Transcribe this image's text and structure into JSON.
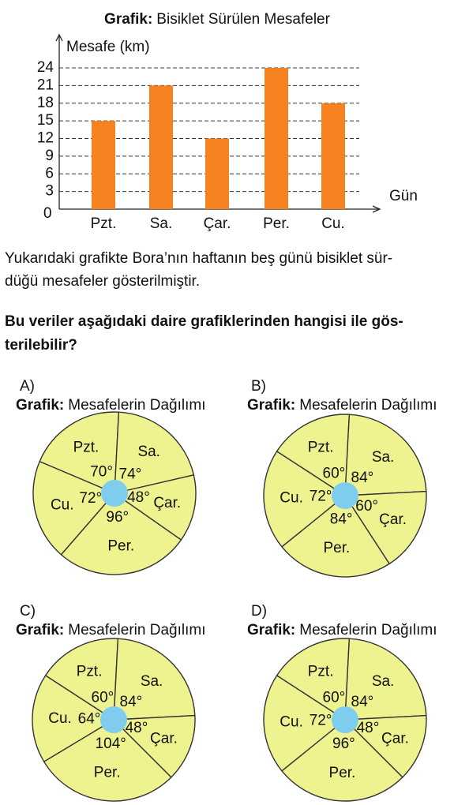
{
  "chart_data": [
    {
      "type": "bar",
      "title_bold": "Grafik:",
      "title": "Bisiklet Sürülen Mesafeler",
      "y_label": "Mesafe (km)",
      "x_label": "Gün",
      "categories": [
        "Pzt.",
        "Sa.",
        "Çar.",
        "Per.",
        "Cu."
      ],
      "values": [
        15,
        21,
        12,
        24,
        18
      ],
      "color": "#f5821f",
      "ylim": [
        0,
        24
      ],
      "yticks": [
        0,
        3,
        6,
        9,
        12,
        15,
        18,
        21,
        24
      ],
      "grid": true
    },
    {
      "type": "pie",
      "option": "A)",
      "title_bold": "Grafik:",
      "title": "Mesafelerin Dağılımı",
      "categories": [
        "Pzt.",
        "Sa.",
        "Çar.",
        "Per.",
        "Cu."
      ],
      "values": [
        70,
        74,
        48,
        96,
        72
      ],
      "value_labels": [
        "70°",
        "74°",
        "48°",
        "96°",
        "72°"
      ],
      "color": "#eef28f"
    },
    {
      "type": "pie",
      "option": "B)",
      "title_bold": "Grafik:",
      "title": "Mesafelerin Dağılımı",
      "categories": [
        "Pzt.",
        "Sa.",
        "Çar.",
        "Per.",
        "Cu."
      ],
      "values": [
        60,
        84,
        60,
        84,
        72
      ],
      "value_labels": [
        "60°",
        "84°",
        "60°",
        "84°",
        "72°"
      ],
      "color": "#eef28f"
    },
    {
      "type": "pie",
      "option": "C)",
      "title_bold": "Grafik:",
      "title": "Mesafelerin Dağılımı",
      "categories": [
        "Pzt.",
        "Sa.",
        "Çar.",
        "Per.",
        "Cu."
      ],
      "values": [
        60,
        84,
        48,
        104,
        64
      ],
      "value_labels": [
        "60°",
        "84°",
        "48°",
        "104°",
        "64°"
      ],
      "color": "#eef28f"
    },
    {
      "type": "pie",
      "option": "D)",
      "title_bold": "Grafik:",
      "title": "Mesafelerin Dağılımı",
      "categories": [
        "Pzt.",
        "Sa.",
        "Çar.",
        "Per.",
        "Cu."
      ],
      "values": [
        60,
        84,
        48,
        96,
        72
      ],
      "value_labels": [
        "60°",
        "84°",
        "48°",
        "96°",
        "72°"
      ],
      "color": "#eef28f"
    }
  ],
  "text": {
    "paragraph": [
      "Yukarıdaki grafikte Bora’nın haftanın beş günü bisiklet sür-",
      "düğü mesafeler gösterilmiştir."
    ],
    "question": [
      "Bu veriler aşağıdaki daire grafiklerinden hangisi ile gös-",
      "terilebilir?"
    ]
  }
}
